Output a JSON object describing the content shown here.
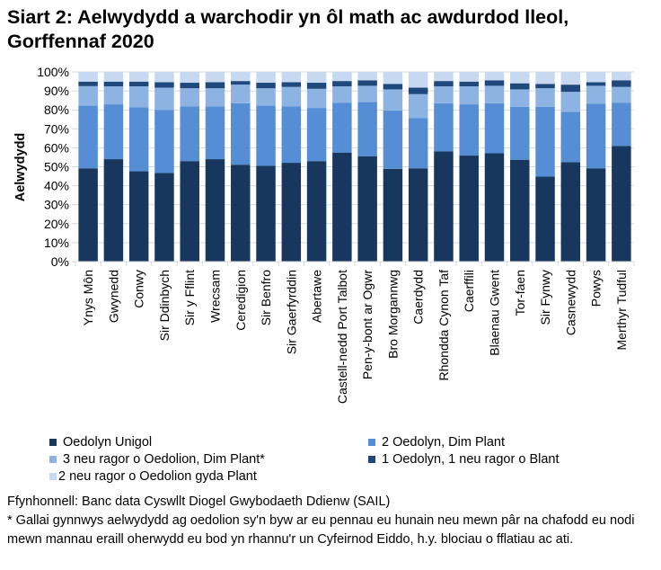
{
  "title": "Siart 2: Aelwydydd a warchodir yn ôl math ac awdurdod lleol, Gorffennaf 2020",
  "chart_data": {
    "type": "bar",
    "stacked": true,
    "percent": true,
    "ylabel": "Aelwydydd",
    "xlabel": "",
    "ylim": [
      0,
      100
    ],
    "yticks": [
      "0%",
      "10%",
      "20%",
      "30%",
      "40%",
      "50%",
      "60%",
      "70%",
      "80%",
      "90%",
      "100%"
    ],
    "grid": true,
    "legend_position": "bottom",
    "categories": [
      "Ynys Môn",
      "Gwynedd",
      "Conwy",
      "Sir Ddinbych",
      "Sir y Fflint",
      "Wrecsam",
      "Ceredigion",
      "Sir Benfro",
      "Sir Gaerfyrddin",
      "Abertawe",
      "Castell-nedd Port Talbot",
      "Pen-y-bont ar Ogwr",
      "Bro Morgannwg",
      "Caerdydd",
      "Rhondda Cynon Taf",
      "Caerffili",
      "Blaenau Gwent",
      "Tor-faen",
      "Sir Fynwy",
      "Casnewydd",
      "Powys",
      "Merthyr Tudful"
    ],
    "series": [
      {
        "name": "Oedolyn Unigol",
        "color": "#17375e",
        "values": [
          49.2,
          54.0,
          47.6,
          46.7,
          53.0,
          54.0,
          51.1,
          50.5,
          52.1,
          53.0,
          57.5,
          55.6,
          48.9,
          49.2,
          58.1,
          55.9,
          57.1,
          53.7,
          44.8,
          52.4,
          49.2,
          61.0
        ]
      },
      {
        "name": "2 Oedolyn, Dim Plant",
        "color": "#558ed5",
        "values": [
          33.0,
          28.9,
          33.7,
          33.3,
          28.9,
          27.9,
          32.4,
          31.7,
          29.8,
          28.0,
          26.3,
          28.5,
          30.8,
          26.4,
          25.4,
          27.0,
          26.4,
          27.9,
          36.8,
          26.6,
          34.0,
          22.8
        ]
      },
      {
        "name": "3 neu ragor o Oedolion, Dim Plant*",
        "color": "#8db3e2",
        "values": [
          10.3,
          9.5,
          11.1,
          11.7,
          9.5,
          9.5,
          9.8,
          9.2,
          10.2,
          10.1,
          8.6,
          8.6,
          11.1,
          12.7,
          8.9,
          9.5,
          9.2,
          9.2,
          9.8,
          10.5,
          9.5,
          8.3
        ]
      },
      {
        "name": "1 Oedolyn, 1 neu ragor o Blant",
        "color": "#1f497d",
        "values": [
          2.4,
          2.5,
          2.5,
          2.9,
          2.9,
          3.2,
          1.9,
          2.9,
          2.5,
          3.2,
          2.8,
          2.9,
          2.9,
          3.4,
          2.8,
          2.5,
          2.9,
          3.2,
          2.3,
          3.8,
          1.9,
          3.5
        ]
      },
      {
        "name": "2 neu ragor o Oedolion gyda Plant",
        "color": "#c6d9f1",
        "values": [
          5.1,
          5.1,
          5.1,
          5.4,
          5.7,
          5.4,
          4.8,
          5.7,
          5.4,
          5.7,
          4.8,
          4.4,
          6.3,
          8.3,
          4.8,
          5.1,
          4.4,
          6.0,
          6.3,
          6.7,
          5.4,
          4.4
        ]
      }
    ]
  },
  "notes": {
    "source": "Ffynhonnell: Banc data Cyswllt Diogel Gwybodaeth Ddienw (SAIL)",
    "footnote": "* Gallai gynnwys aelwydydd ag oedolion sy'n byw ar eu pennau eu hunain neu mewn pâr na chafodd eu nodi mewn mannau eraill oherwydd eu bod yn rhannu'r un Cyfeirnod Eiddo, h.y. blociau o fflatiau ac ati."
  }
}
